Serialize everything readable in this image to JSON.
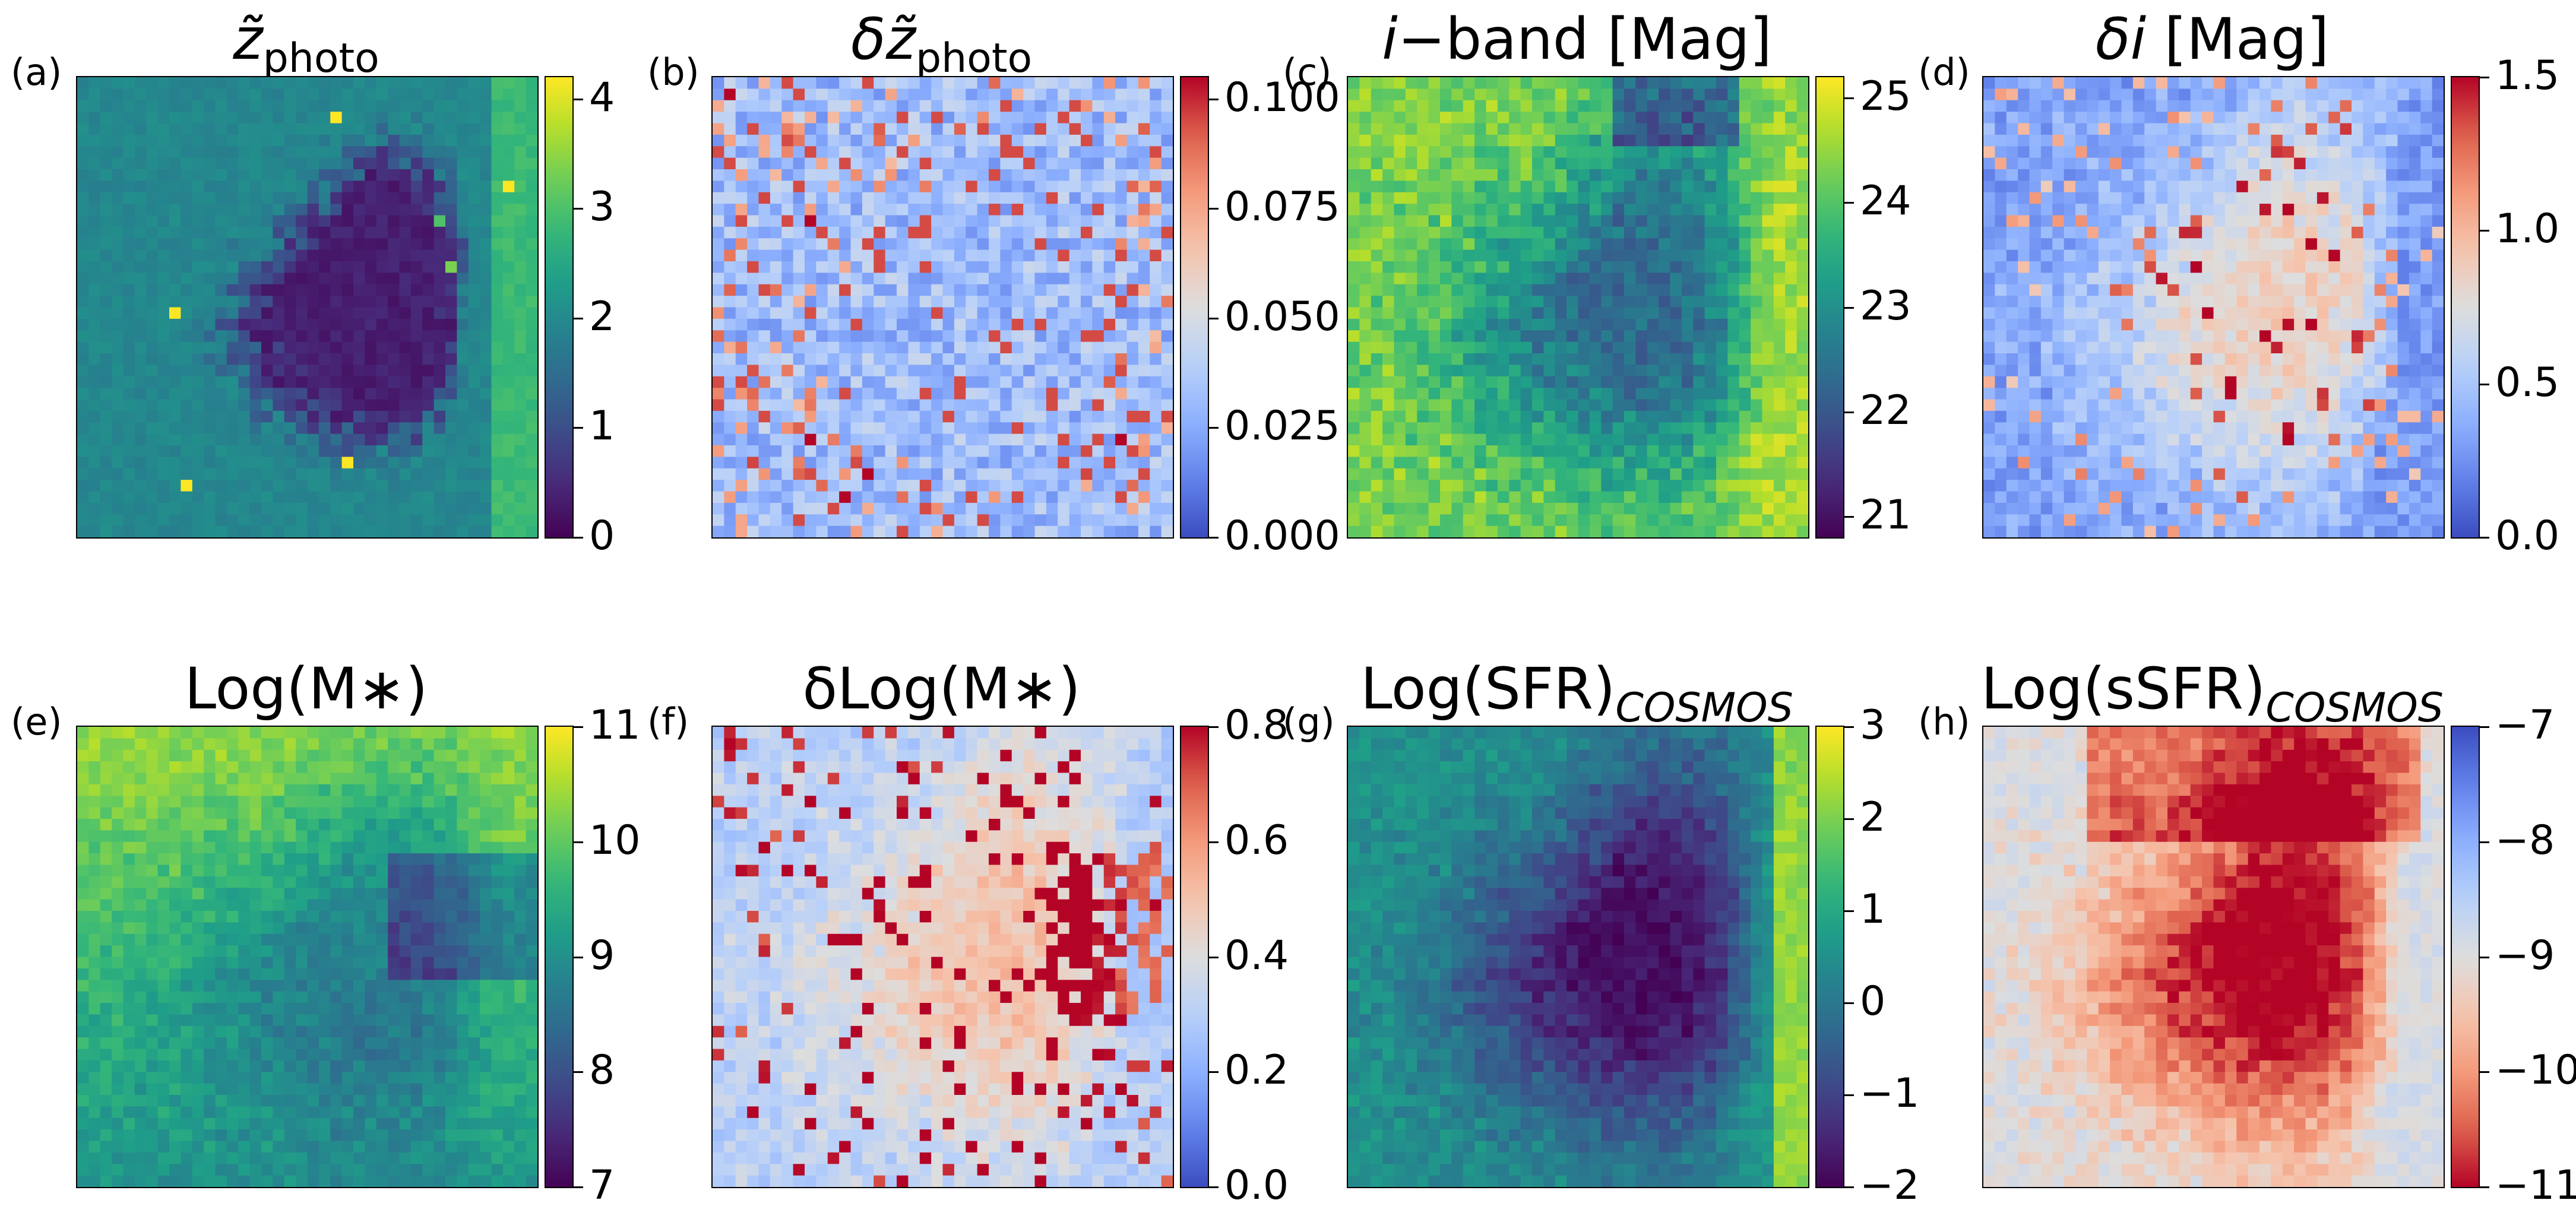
{
  "figure": {
    "panels": [
      {
        "id": "a",
        "letter": "(a)",
        "title_main": "z̃",
        "title_sub": "photo",
        "title_kind": "zphoto",
        "cmap": "viridis",
        "vmin": 0,
        "vmax": 4.2,
        "tick_values": [
          0,
          1,
          2,
          3,
          4
        ],
        "tick_labels": [
          "0",
          "1",
          "2",
          "3",
          "4"
        ]
      },
      {
        "id": "b",
        "letter": "(b)",
        "title_main": "δz̃",
        "title_sub": "photo",
        "title_kind": "dzphoto",
        "cmap": "coolwarm",
        "vmin": 0,
        "vmax": 0.105,
        "tick_values": [
          0,
          0.025,
          0.05,
          0.075,
          0.1
        ],
        "tick_labels": [
          "0.000",
          "0.025",
          "0.050",
          "0.075",
          "0.100"
        ]
      },
      {
        "id": "c",
        "letter": "(c)",
        "title_main": "i−",
        "title_rest": "band [Mag]",
        "title_kind": "iband",
        "cmap": "viridis",
        "vmin": 20.8,
        "vmax": 25.2,
        "tick_values": [
          21,
          22,
          23,
          24,
          25
        ],
        "tick_labels": [
          "21",
          "22",
          "23",
          "24",
          "25"
        ]
      },
      {
        "id": "d",
        "letter": "(d)",
        "title_main": "δi",
        "title_rest": " [Mag]",
        "title_kind": "di",
        "cmap": "coolwarm",
        "vmin": 0,
        "vmax": 1.5,
        "tick_values": [
          0,
          0.5,
          1,
          1.5
        ],
        "tick_labels": [
          "0.0",
          "0.5",
          "1.0",
          "1.5"
        ]
      },
      {
        "id": "e",
        "letter": "(e)",
        "title_main": "Log(M∗)",
        "title_kind": "plain",
        "cmap": "viridis",
        "vmin": 7,
        "vmax": 11,
        "tick_values": [
          7,
          8,
          9,
          10,
          11
        ],
        "tick_labels": [
          "7",
          "8",
          "9",
          "10",
          "11"
        ]
      },
      {
        "id": "f",
        "letter": "(f)",
        "title_main": "δLog(M∗)",
        "title_kind": "plain",
        "cmap": "coolwarm",
        "vmin": 0,
        "vmax": 0.8,
        "tick_values": [
          0,
          0.2,
          0.4,
          0.6,
          0.8
        ],
        "tick_labels": [
          "0.0",
          "0.2",
          "0.4",
          "0.6",
          "0.8"
        ]
      },
      {
        "id": "g",
        "letter": "(g)",
        "title_main": "Log(SFR)",
        "title_sub": "COSMOS",
        "title_kind": "subitalic",
        "cmap": "viridis",
        "vmin": -2,
        "vmax": 3,
        "tick_values": [
          -2,
          -1,
          0,
          1,
          2,
          3
        ],
        "tick_labels": [
          "−2",
          "−1",
          "0",
          "1",
          "2",
          "3"
        ]
      },
      {
        "id": "h",
        "letter": "(h)",
        "title_main": "Log(sSFR)",
        "title_sub": "COSMOS",
        "title_kind": "subitalic",
        "cmap": "coolwarm_r",
        "vmin": -11,
        "vmax": -7,
        "tick_values": [
          -11,
          -10,
          -9,
          -8,
          -7
        ],
        "tick_labels": [
          "−11",
          "−10",
          "−9",
          "−8",
          "−7"
        ]
      }
    ]
  },
  "chart_data": [
    {
      "type": "heatmap",
      "panel": "(a)",
      "title": "z̃ photo",
      "colorbar_range": [
        0,
        4.2
      ],
      "colormap": "viridis",
      "description_of_values": "low (~0.3) in center/right void, ~1.5-2.5 on left and edges, up to ~4 in isolated cells"
    },
    {
      "type": "heatmap",
      "panel": "(b)",
      "title": "δz̃ photo",
      "colorbar_range": [
        0,
        0.105
      ],
      "colormap": "coolwarm"
    },
    {
      "type": "heatmap",
      "panel": "(c)",
      "title": "i−band [Mag]",
      "colorbar_range": [
        20.8,
        25.2
      ],
      "colormap": "viridis"
    },
    {
      "type": "heatmap",
      "panel": "(d)",
      "title": "δi [Mag]",
      "colorbar_range": [
        0,
        1.5
      ],
      "colormap": "coolwarm"
    },
    {
      "type": "heatmap",
      "panel": "(e)",
      "title": "Log(M∗)",
      "colorbar_range": [
        7,
        11
      ],
      "colormap": "viridis"
    },
    {
      "type": "heatmap",
      "panel": "(f)",
      "title": "δLog(M∗)",
      "colorbar_range": [
        0,
        0.8
      ],
      "colormap": "coolwarm"
    },
    {
      "type": "heatmap",
      "panel": "(g)",
      "title": "Log(SFR) COSMOS",
      "colorbar_range": [
        -2,
        3
      ],
      "colormap": "viridis"
    },
    {
      "type": "heatmap",
      "panel": "(h)",
      "title": "Log(sSFR) COSMOS",
      "colorbar_range": [
        -11,
        -7
      ],
      "colormap": "coolwarm_r"
    }
  ]
}
